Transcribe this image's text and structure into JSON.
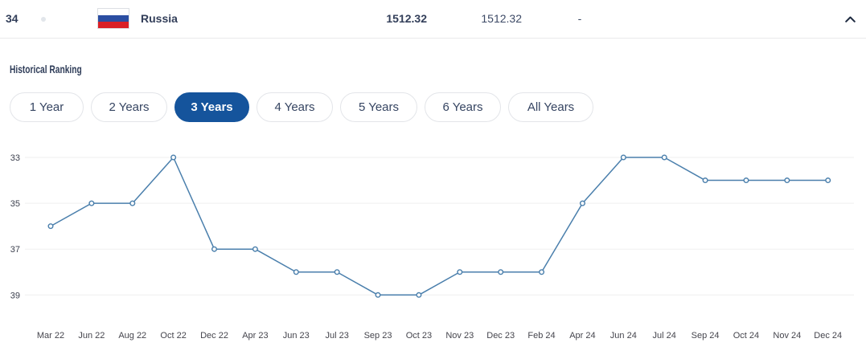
{
  "row": {
    "rank": "34",
    "country": "Russia",
    "flag": "russia-flag",
    "total_points": "1512.32",
    "previous_points": "1512.32",
    "change": "-"
  },
  "section": {
    "title": "Historical Ranking"
  },
  "tabs": [
    {
      "label": "1 Year",
      "selected": false
    },
    {
      "label": "2 Years",
      "selected": false
    },
    {
      "label": "3 Years",
      "selected": true
    },
    {
      "label": "4 Years",
      "selected": false
    },
    {
      "label": "5 Years",
      "selected": false
    },
    {
      "label": "6 Years",
      "selected": false
    },
    {
      "label": "All Years",
      "selected": false
    }
  ],
  "colors": {
    "accent_blue": "#15549c",
    "line_blue": "#4a7fac",
    "navy_text": "#323e59",
    "grid_grey": "#efefef",
    "axis_label": "#45454d"
  },
  "chart_data": {
    "type": "line",
    "title": "Historical Ranking",
    "x": [
      "Mar 22",
      "Jun 22",
      "Aug 22",
      "Oct 22",
      "Dec 22",
      "Apr 23",
      "Jun 23",
      "Jul 23",
      "Sep 23",
      "Oct 23",
      "Nov 23",
      "Dec 23",
      "Feb 24",
      "Apr 24",
      "Jun 24",
      "Jul 24",
      "Sep 24",
      "Oct 24",
      "Nov 24",
      "Dec 24"
    ],
    "values": [
      36,
      35,
      35,
      33,
      37,
      37,
      38,
      38,
      39,
      39,
      38,
      38,
      38,
      35,
      33,
      33,
      34,
      34,
      34,
      34
    ],
    "y_ticks": [
      33,
      35,
      37,
      39
    ],
    "y_axis_inverted": true,
    "grid": true,
    "legend": false,
    "xlabel": "",
    "ylabel": ""
  }
}
